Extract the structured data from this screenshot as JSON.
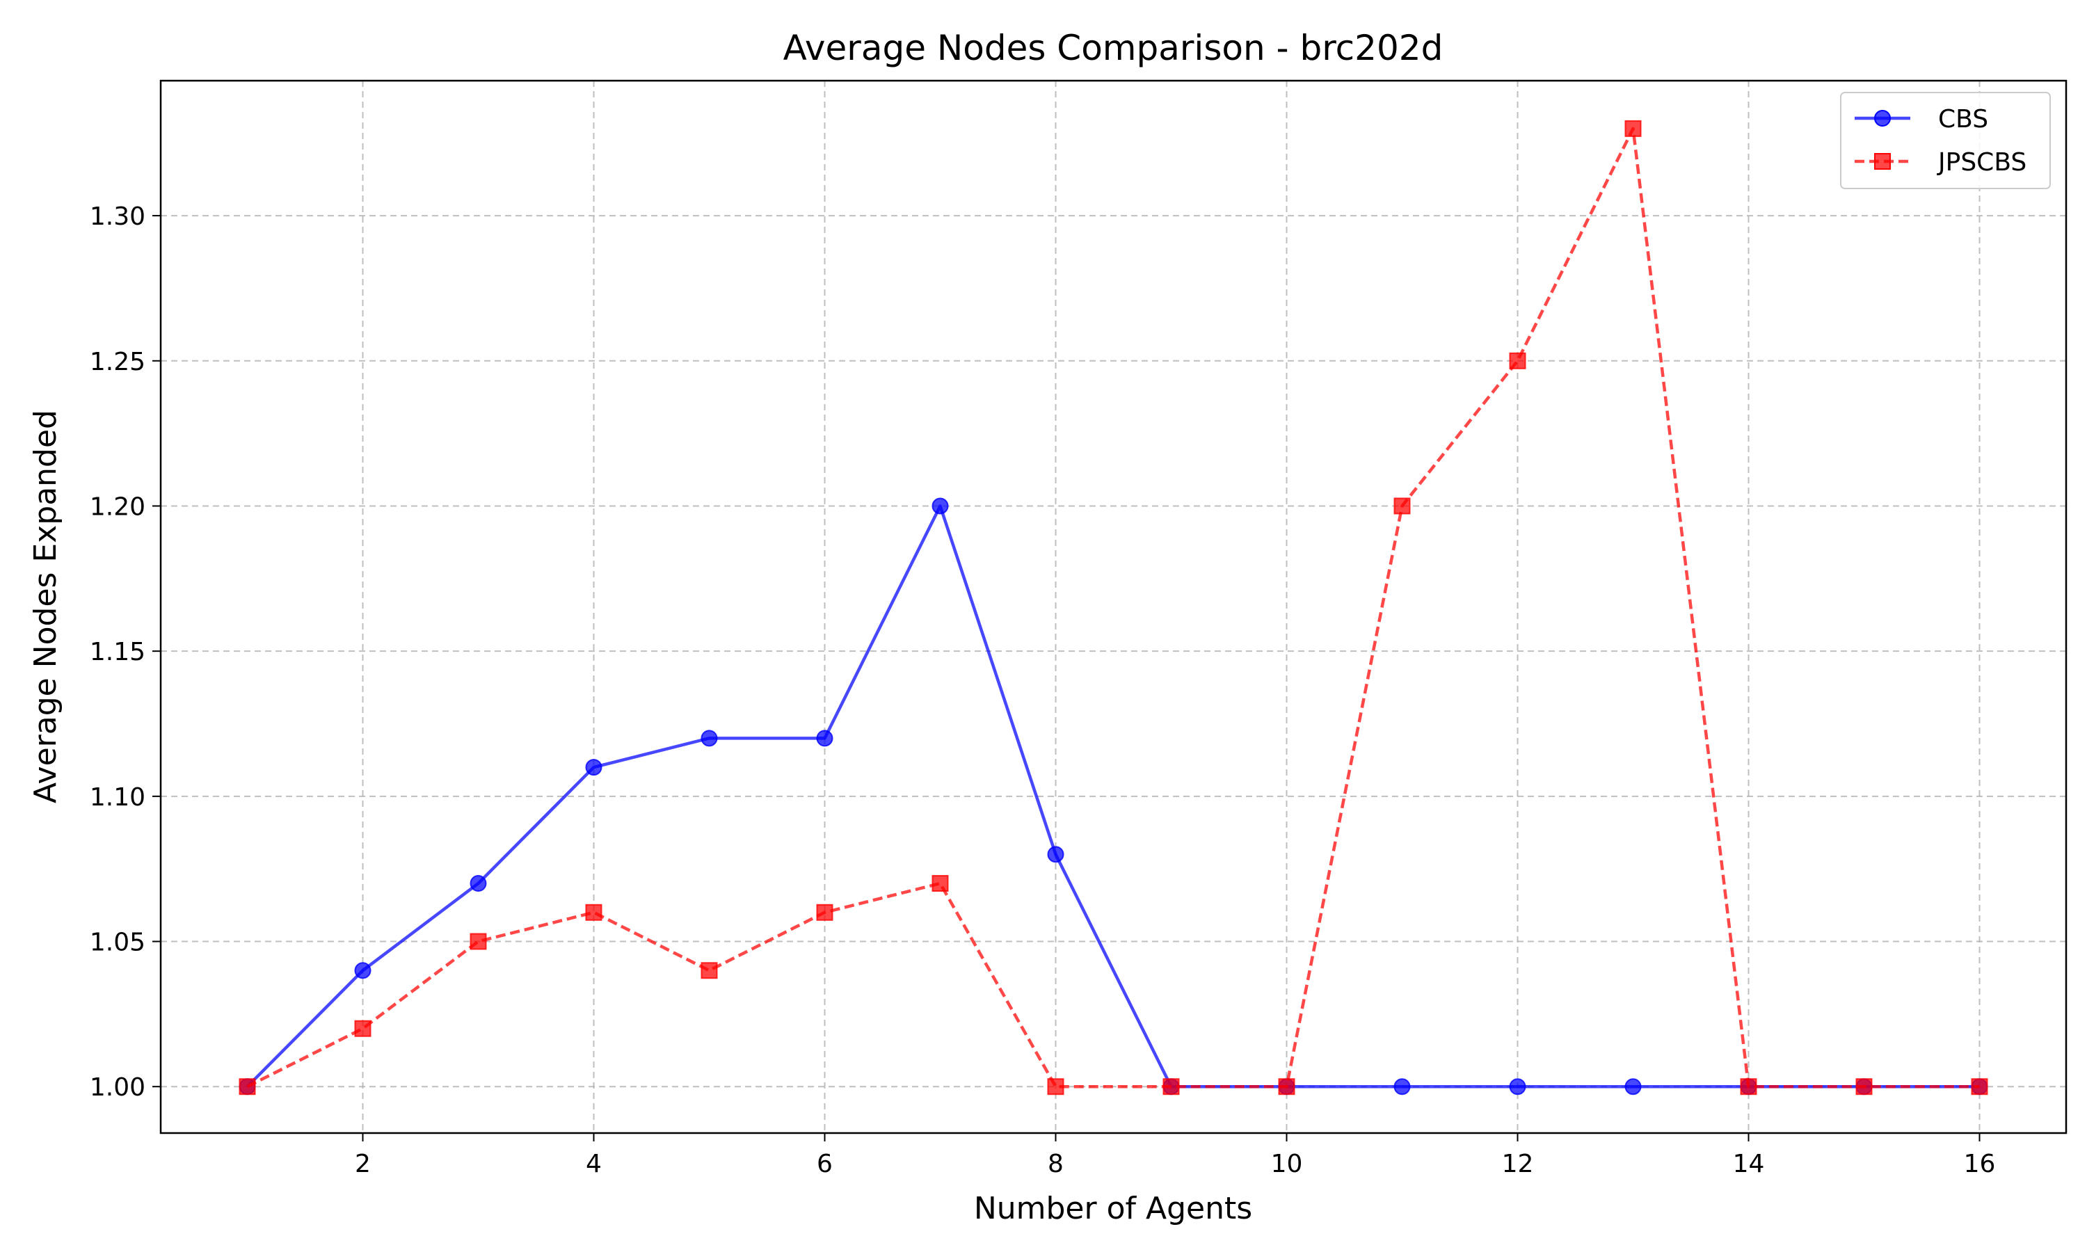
{
  "chart_data": {
    "type": "line",
    "title": "Average Nodes Comparison - brc202d",
    "xlabel": "Number of Agents",
    "ylabel": "Average Nodes Expanded",
    "x": [
      1,
      2,
      3,
      4,
      5,
      6,
      7,
      8,
      9,
      10,
      11,
      12,
      13,
      14,
      15,
      16
    ],
    "xlim": [
      0.25,
      16.75
    ],
    "ylim": [
      0.984,
      1.3465
    ],
    "xticks": [
      2,
      4,
      6,
      8,
      10,
      12,
      14,
      16
    ],
    "xtick_labels": [
      "2",
      "4",
      "6",
      "8",
      "10",
      "12",
      "14",
      "16"
    ],
    "yticks": [
      1.0,
      1.05,
      1.1,
      1.15,
      1.2,
      1.25,
      1.3
    ],
    "ytick_labels": [
      "1.00",
      "1.05",
      "1.10",
      "1.15",
      "1.20",
      "1.25",
      "1.30"
    ],
    "grid": true,
    "legend_position": "top-right",
    "series": [
      {
        "name": "CBS",
        "color": "#0000ff",
        "line_style": "solid",
        "marker": "circle",
        "values": [
          1.0,
          1.04,
          1.07,
          1.11,
          1.12,
          1.12,
          1.2,
          1.08,
          1.0,
          1.0,
          1.0,
          1.0,
          1.0,
          1.0,
          1.0,
          1.0
        ]
      },
      {
        "name": "JPSCBS",
        "color": "#ff0000",
        "line_style": "dashed",
        "marker": "square",
        "values": [
          1.0,
          1.02,
          1.05,
          1.06,
          1.04,
          1.06,
          1.07,
          1.0,
          1.0,
          1.0,
          1.2,
          1.25,
          1.33,
          1.0,
          1.0,
          1.0
        ]
      }
    ]
  }
}
